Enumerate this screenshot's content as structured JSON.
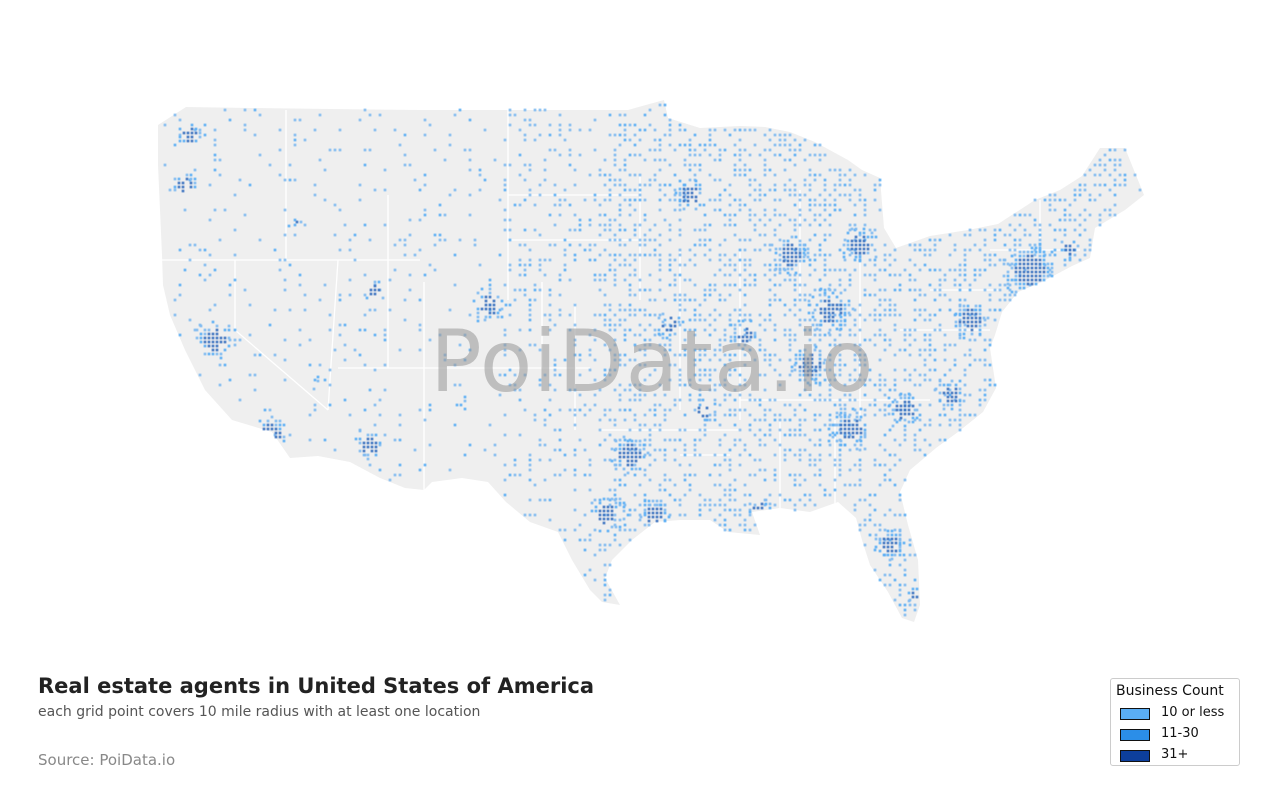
{
  "map": {
    "watermark": "PoiData.io",
    "land_color": "#efefef",
    "border_color": "#ffffff"
  },
  "title": "Real estate agents in United States of America",
  "subtitle": "each grid point covers 10 mile radius with at least one location",
  "source": "Source: PoiData.io",
  "legend": {
    "title": "Business Count",
    "items": [
      {
        "label": "10 or less",
        "color": "#5aaef5"
      },
      {
        "label": "11-30",
        "color": "#2b8ee8"
      },
      {
        "label": "31+",
        "color": "#0d3f9c"
      }
    ]
  }
}
